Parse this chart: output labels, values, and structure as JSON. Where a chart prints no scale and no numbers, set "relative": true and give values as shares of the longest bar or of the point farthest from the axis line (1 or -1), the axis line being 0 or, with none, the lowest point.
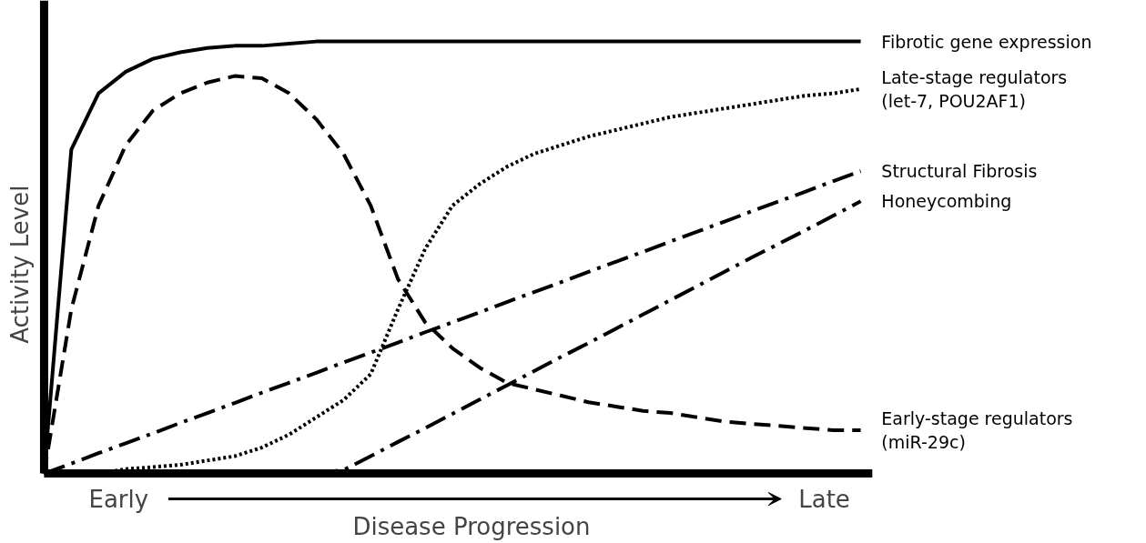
{
  "chart_data": {
    "type": "line",
    "relative": true,
    "xlabel": "Disease Progression",
    "ylabel": "Activity Level",
    "tick_labels": false,
    "grid": false,
    "marker": "none",
    "annotations": [
      "Early",
      "Late"
    ],
    "categories": [
      null,
      null,
      null,
      null,
      null,
      null,
      null,
      null,
      null,
      null,
      null,
      null,
      null,
      null,
      null,
      null,
      null,
      null,
      null,
      null,
      null,
      null,
      null,
      null,
      null,
      null,
      null,
      null,
      null,
      null,
      null
    ],
    "series": [
      {
        "name": "Fibrotic gene expression",
        "color": "#000000",
        "line_style": "solid",
        "values": [
          0,
          0.75,
          0.88,
          0.93,
          0.96,
          0.975,
          0.985,
          0.99,
          0.99,
          0.995,
          1,
          1,
          1,
          1,
          1,
          1,
          1,
          1,
          1,
          1,
          1,
          1,
          1,
          1,
          1,
          1,
          1,
          1,
          1,
          1,
          1
        ]
      },
      {
        "name": "Early-stage regulators\n(miR-29c)",
        "color": "#000000",
        "line_style": "dashed",
        "values": [
          0,
          0.38,
          0.62,
          0.76,
          0.84,
          0.88,
          0.905,
          0.92,
          0.915,
          0.88,
          0.82,
          0.74,
          0.62,
          0.45,
          0.35,
          0.29,
          0.245,
          0.21,
          0.195,
          0.18,
          0.165,
          0.155,
          0.145,
          0.14,
          0.13,
          0.12,
          0.115,
          0.11,
          0.105,
          0.1,
          0.1
        ]
      },
      {
        "name": "Late-stage regulators\n(let-7, POU2AF1)",
        "color": "#000000",
        "line_style": "dotted",
        "values": [
          0,
          0,
          0,
          0.01,
          0.015,
          0.02,
          0.03,
          0.04,
          0.06,
          0.09,
          0.13,
          0.17,
          0.23,
          0.38,
          0.52,
          0.62,
          0.67,
          0.71,
          0.74,
          0.76,
          0.78,
          0.795,
          0.81,
          0.825,
          0.835,
          0.845,
          0.855,
          0.865,
          0.875,
          0.88,
          0.89
        ]
      },
      {
        "name": "Structural Fibrosis",
        "color": "#000000",
        "line_style": "dashdot",
        "values": [
          0,
          0.023,
          0.047,
          0.07,
          0.093,
          0.117,
          0.14,
          0.163,
          0.187,
          0.21,
          0.233,
          0.257,
          0.28,
          0.303,
          0.327,
          0.35,
          0.373,
          0.397,
          0.42,
          0.443,
          0.467,
          0.49,
          0.513,
          0.537,
          0.56,
          0.583,
          0.607,
          0.63,
          0.653,
          0.677,
          0.7
        ]
      },
      {
        "name": "Honeycombing",
        "color": "#000000",
        "line_style": "dashdot",
        "values": [
          null,
          null,
          null,
          null,
          null,
          null,
          null,
          null,
          null,
          null,
          0,
          0.008,
          0.04,
          0.073,
          0.105,
          0.138,
          0.171,
          0.204,
          0.237,
          0.27,
          0.302,
          0.335,
          0.368,
          0.401,
          0.434,
          0.467,
          0.5,
          0.532,
          0.564,
          0.597,
          0.63
        ]
      }
    ]
  }
}
